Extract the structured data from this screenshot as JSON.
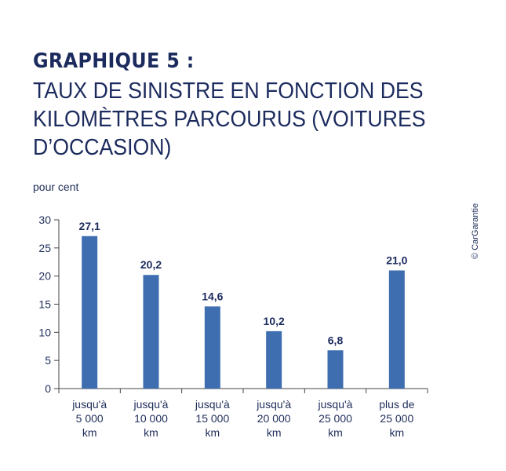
{
  "header": {
    "title": "GRAPHIQUE 5 :",
    "subtitle": "TAUX DE SINISTRE EN FONCTION DES KILOMÈTRES PARCOURUS (VOITURES D’OCCASION)"
  },
  "unit_label": "pour cent",
  "copyright": "© CarGarantie",
  "colors": {
    "bar": "#3e6eb0",
    "axis": "#444444",
    "text": "#1c2b5e"
  },
  "chart_data": {
    "type": "bar",
    "title": "GRAPHIQUE 5 : TAUX DE SINISTRE EN FONCTION DES KILOMÈTRES PARCOURUS (VOITURES D’OCCASION)",
    "ylabel": "pour cent",
    "xlabel": "",
    "ylim": [
      0,
      30
    ],
    "yticks": [
      0,
      5,
      10,
      15,
      20,
      25,
      30
    ],
    "categories": [
      [
        "jusqu'à",
        "5 000",
        "km"
      ],
      [
        "jusqu'à",
        "10 000",
        "km"
      ],
      [
        "jusqu'à",
        "15 000",
        "km"
      ],
      [
        "jusqu'à",
        "20 000",
        "km"
      ],
      [
        "jusqu'à",
        "25 000",
        "km"
      ],
      [
        "plus de",
        "25 000",
        "km"
      ]
    ],
    "values": [
      27.1,
      20.2,
      14.6,
      10.2,
      6.8,
      21.0
    ],
    "value_labels": [
      "27,1",
      "20,2",
      "14,6",
      "10,2",
      "6,8",
      "21,0"
    ],
    "grid": false,
    "legend": "none"
  }
}
